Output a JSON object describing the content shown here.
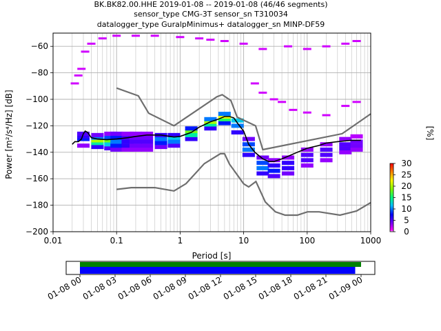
{
  "chart_data": {
    "type": "heatmap",
    "title_lines": [
      "BK.BK82.00.HHE   2019-01-08 -- 2019-01-08  (46/46 segments)",
      "sensor_type CMG-3T sensor_sn T310034",
      "datalogger_type GuralpMinimus+ datalogger_sn MINP-DF59"
    ],
    "xlabel": "Period [s]",
    "ylabel": "Power [m²/s⁴/Hz] [dB]",
    "xscale": "log",
    "xlim": [
      0.01,
      1000
    ],
    "ylim": [
      -200,
      -50
    ],
    "x_tick_labels": [
      "0.01",
      "0.1",
      "1",
      "10",
      "100",
      "1000"
    ],
    "y_tick_labels": [
      "−200",
      "−180",
      "−160",
      "−140",
      "−120",
      "−100",
      "−80",
      "−60"
    ],
    "grid": true,
    "colorbar": {
      "label": "[%]",
      "range": [
        0,
        30
      ],
      "tick_labels": [
        "0",
        "5",
        "10",
        "15",
        "20",
        "25",
        "30"
      ]
    },
    "noise_models": [
      {
        "periods": [
          0.1,
          0.22,
          0.32,
          0.8,
          3.8,
          4.6,
          6.3,
          7.9,
          15.4,
          20,
          354.8,
          1000
        ],
        "values": [
          -91.5,
          -97.4,
          -110.5,
          -120,
          -98,
          -96.5,
          -101,
          -113.5,
          -120,
          -138,
          -126,
          -111
        ]
      },
      {
        "periods": [
          0.1,
          0.17,
          0.4,
          0.8,
          1.24,
          2.4,
          4.3,
          5,
          6,
          10,
          12,
          15.6,
          21.9,
          31.6,
          45,
          70,
          101,
          154,
          328,
          600,
          1000
        ],
        "values": [
          -168,
          -166.7,
          -166.7,
          -169.2,
          -163.7,
          -148.6,
          -141.1,
          -141.1,
          -149,
          -163.8,
          -166.2,
          -162.1,
          -177.5,
          -185,
          -187.5,
          -187.5,
          -185,
          -185,
          -187.5,
          -184.4,
          -178
        ]
      }
    ],
    "mean_curve": {
      "periods": [
        0.02,
        0.022,
        0.025,
        0.028,
        0.03,
        0.032,
        0.035,
        0.04,
        0.05,
        0.07,
        0.1,
        0.15,
        0.2,
        0.3,
        0.5,
        0.8,
        1,
        1.5,
        2,
        3,
        4,
        5,
        6,
        7,
        8,
        10,
        12,
        15,
        20,
        25,
        30,
        40,
        50,
        70,
        100,
        150,
        200,
        300,
        500,
        700
      ],
      "values": [
        -134,
        -132,
        -132,
        -130,
        -126,
        -124,
        -125,
        -129,
        -130,
        -130.5,
        -130,
        -129,
        -128,
        -127,
        -127,
        -128.5,
        -128,
        -125,
        -121,
        -117,
        -115,
        -113,
        -113,
        -114,
        -118,
        -124,
        -134,
        -140,
        -145,
        -147,
        -147,
        -145,
        -143,
        -140,
        -137,
        -135,
        -133,
        -132,
        -131,
        -131
      ]
    },
    "psd_histogram": [
      {
        "period": 0.03,
        "levels": [
          [
            -135,
            3
          ],
          [
            -130,
            8
          ],
          [
            -128,
            6
          ],
          [
            -126,
            5
          ]
        ]
      },
      {
        "period": 0.05,
        "levels": [
          [
            -136,
            6
          ],
          [
            -133,
            14
          ],
          [
            -131,
            20
          ],
          [
            -129,
            10
          ],
          [
            -127,
            4
          ]
        ]
      },
      {
        "period": 0.08,
        "levels": [
          [
            -137,
            5
          ],
          [
            -134,
            12
          ],
          [
            -131,
            18
          ],
          [
            -129,
            9
          ],
          [
            -126,
            3
          ]
        ]
      },
      {
        "period": 0.1,
        "levels": [
          [
            -138,
            4
          ],
          [
            -135,
            8
          ],
          [
            -132,
            10
          ],
          [
            -129,
            8
          ],
          [
            -126,
            4
          ]
        ]
      },
      {
        "period": 0.15,
        "levels": [
          [
            -138,
            3
          ],
          [
            -135,
            6
          ],
          [
            -132,
            6
          ],
          [
            -129,
            5
          ],
          [
            -126,
            3
          ]
        ]
      },
      {
        "period": 0.2,
        "levels": [
          [
            -138,
            3
          ],
          [
            -135,
            4
          ],
          [
            -132,
            5
          ],
          [
            -129,
            4
          ],
          [
            -126,
            3
          ]
        ]
      },
      {
        "period": 0.3,
        "levels": [
          [
            -138,
            3
          ],
          [
            -135,
            4
          ],
          [
            -132,
            5
          ],
          [
            -129,
            4
          ],
          [
            -126,
            3
          ]
        ]
      },
      {
        "period": 0.5,
        "levels": [
          [
            -136,
            4
          ],
          [
            -133,
            8
          ],
          [
            -130,
            10
          ],
          [
            -127,
            6
          ]
        ]
      },
      {
        "period": 0.8,
        "levels": [
          [
            -135,
            5
          ],
          [
            -132,
            10
          ],
          [
            -129,
            12
          ],
          [
            -127,
            6
          ]
        ]
      },
      {
        "period": 1.5,
        "levels": [
          [
            -130,
            6
          ],
          [
            -127,
            14
          ],
          [
            -124,
            18
          ],
          [
            -122,
            8
          ]
        ]
      },
      {
        "period": 3,
        "levels": [
          [
            -122,
            6
          ],
          [
            -119,
            14
          ],
          [
            -117,
            20
          ],
          [
            -115,
            10
          ]
        ]
      },
      {
        "period": 5,
        "levels": [
          [
            -118,
            8
          ],
          [
            -115,
            16
          ],
          [
            -113,
            22
          ],
          [
            -111,
            10
          ]
        ]
      },
      {
        "period": 8,
        "levels": [
          [
            -125,
            6
          ],
          [
            -120,
            10
          ],
          [
            -116,
            12
          ]
        ]
      },
      {
        "period": 12,
        "levels": [
          [
            -142,
            6
          ],
          [
            -138,
            10
          ],
          [
            -134,
            9
          ],
          [
            -130,
            4
          ]
        ]
      },
      {
        "period": 20,
        "levels": [
          [
            -156,
            6
          ],
          [
            -152,
            10
          ],
          [
            -148,
            9
          ],
          [
            -144,
            4
          ]
        ]
      },
      {
        "period": 30,
        "levels": [
          [
            -158,
            5
          ],
          [
            -154,
            8
          ],
          [
            -150,
            6
          ],
          [
            -146,
            3
          ]
        ]
      },
      {
        "period": 50,
        "levels": [
          [
            -156,
            4
          ],
          [
            -152,
            6
          ],
          [
            -148,
            6
          ],
          [
            -144,
            3
          ]
        ]
      },
      {
        "period": 100,
        "levels": [
          [
            -150,
            3
          ],
          [
            -146,
            5
          ],
          [
            -142,
            5
          ],
          [
            -138,
            3
          ]
        ]
      },
      {
        "period": 200,
        "levels": [
          [
            -146,
            3
          ],
          [
            -142,
            5
          ],
          [
            -138,
            5
          ],
          [
            -134,
            3
          ]
        ]
      },
      {
        "period": 400,
        "levels": [
          [
            -140,
            3
          ],
          [
            -137,
            5
          ],
          [
            -134,
            5
          ],
          [
            -130,
            3
          ]
        ]
      },
      {
        "period": 600,
        "levels": [
          [
            -138,
            3
          ],
          [
            -135,
            4
          ],
          [
            -132,
            4
          ],
          [
            -128,
            2
          ]
        ]
      }
    ],
    "psd_outliers": [
      [
        0.022,
        -88
      ],
      [
        0.025,
        -82
      ],
      [
        0.028,
        -77
      ],
      [
        0.032,
        -64
      ],
      [
        0.04,
        -58
      ],
      [
        0.06,
        -54
      ],
      [
        0.1,
        -52
      ],
      [
        0.2,
        -52
      ],
      [
        0.4,
        -52
      ],
      [
        1,
        -53
      ],
      [
        2,
        -54
      ],
      [
        3,
        -55
      ],
      [
        5,
        -56
      ],
      [
        10,
        -58
      ],
      [
        20,
        -62
      ],
      [
        50,
        -60
      ],
      [
        100,
        -62
      ],
      [
        200,
        -60
      ],
      [
        400,
        -58
      ],
      [
        600,
        -56
      ],
      [
        15,
        -88
      ],
      [
        20,
        -95
      ],
      [
        30,
        -100
      ],
      [
        40,
        -102
      ],
      [
        60,
        -108
      ],
      [
        100,
        -110
      ],
      [
        200,
        -112
      ],
      [
        400,
        -105
      ],
      [
        600,
        -102
      ]
    ],
    "timeline": {
      "tick_labels": [
        "01-08 00",
        "01-08 03",
        "01-08 06",
        "01-08 09",
        "01-08 12",
        "01-08 15",
        "01-08 18",
        "01-08 21",
        "01-09 00"
      ],
      "range_hours": [
        0,
        24
      ],
      "data_span_hours": [
        0,
        24
      ],
      "psd_span_hours": [
        0,
        23.5
      ],
      "colors": {
        "data": "#008000",
        "psd": "#0000ff"
      }
    }
  }
}
